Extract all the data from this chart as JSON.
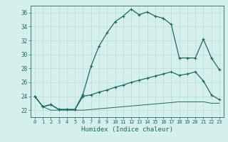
{
  "background_color": "#d5efec",
  "grid_color": "#b8dbd8",
  "line_color": "#1a6b60",
  "xlabel": "Humidex (Indice chaleur)",
  "xlim": [
    -0.5,
    23.5
  ],
  "ylim": [
    21.0,
    37.0
  ],
  "yticks": [
    22,
    24,
    26,
    28,
    30,
    32,
    34,
    36
  ],
  "xticks": [
    0,
    1,
    2,
    3,
    4,
    5,
    6,
    7,
    8,
    9,
    10,
    11,
    12,
    13,
    14,
    15,
    16,
    17,
    18,
    19,
    20,
    21,
    22,
    23
  ],
  "curve_main_x": [
    0,
    1,
    2,
    3,
    4,
    5,
    6,
    7,
    8,
    9,
    10,
    11,
    12,
    13,
    14,
    15,
    16,
    17,
    18,
    19,
    20,
    21,
    22,
    23
  ],
  "curve_main_y": [
    24.0,
    22.5,
    22.8,
    22.1,
    22.1,
    22.1,
    24.3,
    28.3,
    31.2,
    33.1,
    34.7,
    35.5,
    36.5,
    35.7,
    36.1,
    35.5,
    35.2,
    34.3,
    29.5,
    29.5,
    29.5,
    32.2,
    29.5,
    27.8
  ],
  "curve_mid_x": [
    0,
    1,
    2,
    3,
    4,
    5,
    6,
    7,
    8,
    9,
    10,
    11,
    12,
    13,
    14,
    15,
    16,
    17,
    18,
    19,
    20,
    21,
    22,
    23
  ],
  "curve_mid_y": [
    24.0,
    22.5,
    22.8,
    22.1,
    22.1,
    22.1,
    24.0,
    24.2,
    24.6,
    24.9,
    25.3,
    25.6,
    26.0,
    26.3,
    26.6,
    26.9,
    27.2,
    27.5,
    27.0,
    27.2,
    27.5,
    26.2,
    24.2,
    23.5
  ],
  "curve_bot_x": [
    0,
    1,
    2,
    3,
    4,
    5,
    6,
    7,
    8,
    9,
    10,
    11,
    12,
    13,
    14,
    15,
    16,
    17,
    18,
    19,
    20,
    21,
    22,
    23
  ],
  "curve_bot_y": [
    24.0,
    22.5,
    22.0,
    22.0,
    22.0,
    22.0,
    22.0,
    22.1,
    22.2,
    22.3,
    22.4,
    22.5,
    22.6,
    22.7,
    22.8,
    22.9,
    23.0,
    23.1,
    23.2,
    23.2,
    23.2,
    23.2,
    23.0,
    23.0
  ]
}
